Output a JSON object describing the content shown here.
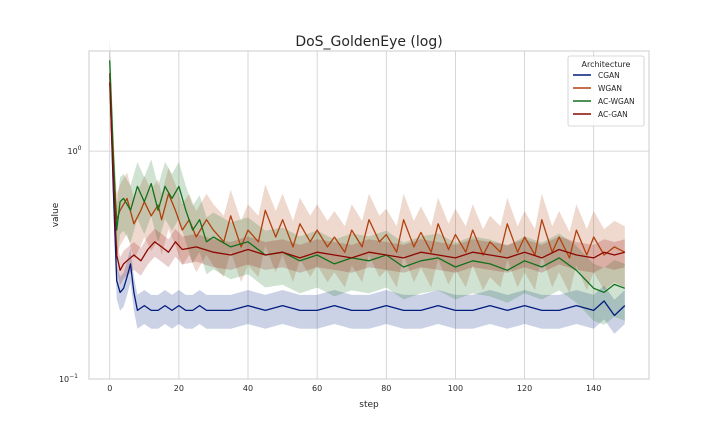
{
  "chart_data": {
    "type": "line",
    "title": "DoS_GoldenEye (log)",
    "xlabel": "step",
    "ylabel": "value",
    "yscale": "log",
    "xlim": [
      -6,
      156
    ],
    "ylim": [
      0.1,
      2.75
    ],
    "x_ticks": [
      0,
      20,
      40,
      60,
      80,
      100,
      120,
      140
    ],
    "y_ticks": [
      {
        "value": 0.1,
        "base": "10",
        "exp": "−1"
      },
      {
        "value": 1,
        "base": "10",
        "exp": "0"
      }
    ],
    "grid": true,
    "legend": {
      "title": "Architecture",
      "placement": "top-right",
      "entries": [
        {
          "name": "CGAN",
          "color": "#001c7f"
        },
        {
          "name": "WGAN",
          "color": "#b1400d"
        },
        {
          "name": "AC-WGAN",
          "color": "#12711c"
        },
        {
          "name": "AC-GAN",
          "color": "#8c0800"
        }
      ]
    },
    "series": [
      {
        "name": "CGAN",
        "color": "#001c7f",
        "band": 0.17,
        "x": [
          0,
          1,
          2,
          3,
          4,
          5,
          6,
          7,
          8,
          10,
          12,
          14,
          16,
          18,
          20,
          22,
          24,
          26,
          28,
          30,
          35,
          40,
          45,
          50,
          55,
          60,
          65,
          70,
          75,
          80,
          85,
          90,
          95,
          100,
          105,
          110,
          115,
          120,
          125,
          130,
          135,
          140,
          143,
          146,
          149
        ],
        "values": [
          2.2,
          0.7,
          0.27,
          0.24,
          0.25,
          0.28,
          0.32,
          0.24,
          0.2,
          0.21,
          0.2,
          0.2,
          0.21,
          0.2,
          0.21,
          0.2,
          0.2,
          0.21,
          0.2,
          0.2,
          0.2,
          0.21,
          0.2,
          0.21,
          0.2,
          0.2,
          0.21,
          0.2,
          0.2,
          0.21,
          0.2,
          0.2,
          0.21,
          0.2,
          0.2,
          0.21,
          0.2,
          0.21,
          0.2,
          0.2,
          0.21,
          0.2,
          0.22,
          0.19,
          0.21
        ]
      },
      {
        "name": "WGAN",
        "color": "#b1400d",
        "band": 0.3,
        "x": [
          0,
          1,
          2,
          3,
          5,
          7,
          9,
          10,
          12,
          14,
          15,
          17,
          19,
          21,
          23,
          25,
          28,
          30,
          33,
          35,
          38,
          40,
          43,
          45,
          48,
          50,
          53,
          55,
          58,
          60,
          63,
          65,
          68,
          70,
          73,
          75,
          78,
          80,
          83,
          85,
          88,
          90,
          93,
          95,
          98,
          100,
          103,
          105,
          108,
          110,
          113,
          115,
          118,
          120,
          123,
          125,
          128,
          130,
          133,
          135,
          138,
          140,
          143,
          146,
          149
        ],
        "values": [
          2.2,
          0.9,
          0.5,
          0.55,
          0.62,
          0.48,
          0.55,
          0.6,
          0.52,
          0.58,
          0.5,
          0.65,
          0.55,
          0.45,
          0.5,
          0.42,
          0.5,
          0.45,
          0.4,
          0.52,
          0.38,
          0.45,
          0.4,
          0.55,
          0.42,
          0.5,
          0.38,
          0.48,
          0.4,
          0.45,
          0.38,
          0.42,
          0.36,
          0.45,
          0.38,
          0.5,
          0.4,
          0.43,
          0.36,
          0.5,
          0.38,
          0.44,
          0.36,
          0.48,
          0.37,
          0.43,
          0.36,
          0.45,
          0.35,
          0.4,
          0.36,
          0.48,
          0.36,
          0.42,
          0.35,
          0.5,
          0.36,
          0.42,
          0.34,
          0.45,
          0.35,
          0.42,
          0.35,
          0.38,
          0.36
        ]
      },
      {
        "name": "AC-WGAN",
        "color": "#12711c",
        "band": 0.28,
        "x": [
          0,
          1,
          2,
          3,
          4,
          6,
          8,
          10,
          12,
          14,
          16,
          18,
          20,
          22,
          24,
          26,
          28,
          30,
          35,
          40,
          45,
          50,
          55,
          60,
          65,
          70,
          75,
          80,
          85,
          90,
          95,
          100,
          105,
          110,
          115,
          120,
          125,
          130,
          135,
          140,
          143,
          146,
          149
        ],
        "values": [
          2.5,
          1.0,
          0.45,
          0.6,
          0.62,
          0.55,
          0.7,
          0.6,
          0.72,
          0.55,
          0.7,
          0.62,
          0.7,
          0.55,
          0.45,
          0.5,
          0.4,
          0.42,
          0.38,
          0.4,
          0.35,
          0.36,
          0.33,
          0.35,
          0.32,
          0.34,
          0.33,
          0.35,
          0.31,
          0.33,
          0.34,
          0.31,
          0.33,
          0.32,
          0.3,
          0.33,
          0.31,
          0.34,
          0.3,
          0.25,
          0.24,
          0.26,
          0.25
        ]
      },
      {
        "name": "AC-GAN",
        "color": "#8c0800",
        "band": 0.14,
        "x": [
          0,
          1,
          2,
          3,
          4,
          5,
          7,
          9,
          11,
          13,
          15,
          17,
          19,
          21,
          25,
          30,
          35,
          40,
          45,
          50,
          55,
          60,
          65,
          70,
          75,
          80,
          85,
          90,
          95,
          100,
          105,
          110,
          115,
          120,
          125,
          130,
          135,
          140,
          143,
          146,
          149
        ],
        "values": [
          2.0,
          0.8,
          0.35,
          0.3,
          0.32,
          0.33,
          0.35,
          0.33,
          0.37,
          0.4,
          0.38,
          0.36,
          0.4,
          0.37,
          0.38,
          0.36,
          0.35,
          0.37,
          0.35,
          0.36,
          0.34,
          0.36,
          0.35,
          0.34,
          0.36,
          0.35,
          0.34,
          0.36,
          0.35,
          0.34,
          0.36,
          0.35,
          0.34,
          0.36,
          0.34,
          0.37,
          0.35,
          0.34,
          0.36,
          0.35,
          0.36
        ]
      }
    ]
  }
}
